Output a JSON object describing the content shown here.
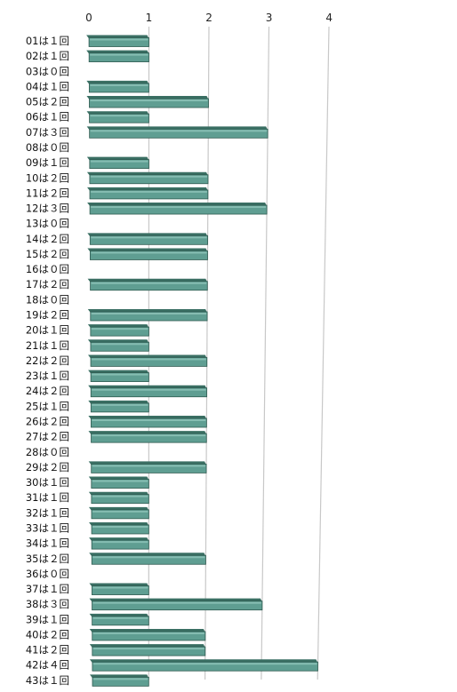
{
  "chart_data": {
    "type": "bar",
    "orientation": "horizontal",
    "categories": [
      "01は１回",
      "02は１回",
      "03は０回",
      "04は１回",
      "05は２回",
      "06は１回",
      "07は３回",
      "08は０回",
      "09は１回",
      "10は２回",
      "11は２回",
      "12は３回",
      "13は０回",
      "14は２回",
      "15は２回",
      "16は０回",
      "17は２回",
      "18は０回",
      "19は２回",
      "20は１回",
      "21は１回",
      "22は２回",
      "23は１回",
      "24は２回",
      "25は１回",
      "26は２回",
      "27は２回",
      "28は０回",
      "29は２回",
      "30は１回",
      "31は１回",
      "32は１回",
      "33は１回",
      "34は１回",
      "35は２回",
      "36は０回",
      "37は１回",
      "38は３回",
      "39は１回",
      "40は２回",
      "41は２回",
      "42は４回",
      "43は１回"
    ],
    "values": [
      1,
      1,
      0,
      1,
      2,
      1,
      3,
      0,
      1,
      2,
      2,
      3,
      0,
      2,
      2,
      0,
      2,
      0,
      2,
      1,
      1,
      2,
      1,
      2,
      1,
      2,
      2,
      0,
      2,
      1,
      1,
      1,
      1,
      1,
      2,
      0,
      1,
      3,
      1,
      2,
      2,
      4,
      1
    ],
    "xticks": [
      "0",
      "1",
      "2",
      "3",
      "4"
    ],
    "xlim": [
      0,
      4
    ],
    "title": "",
    "xlabel": "",
    "ylabel": "",
    "grid": true,
    "bar_color": "#5f9e92",
    "bar_dark_color": "#3a6f63"
  }
}
